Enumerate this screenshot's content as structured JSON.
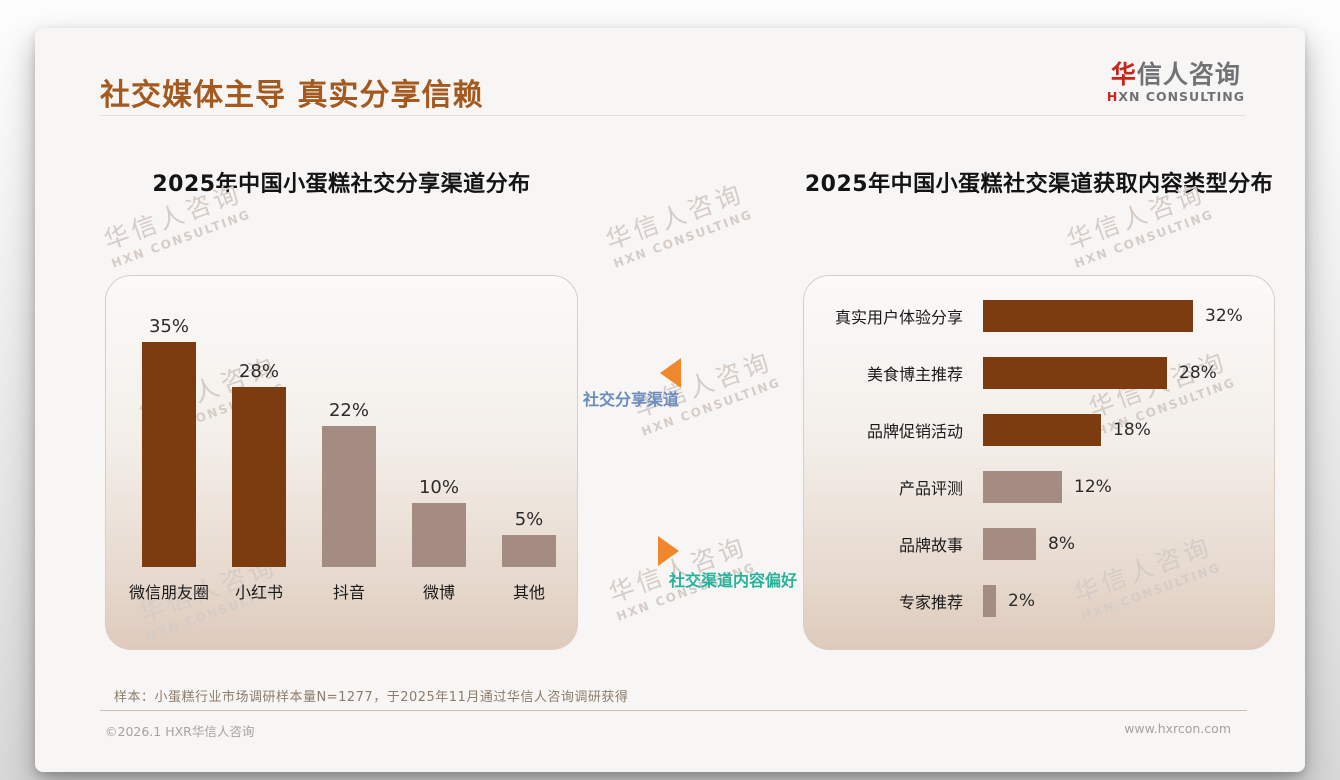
{
  "page": {
    "title": "社交媒体主导 真实分享信赖",
    "logo": {
      "cn_accent": "华",
      "cn_rest": "信人咨询",
      "en_accent": "H",
      "en_rest": "XN CONSULTING"
    },
    "watermark": {
      "cn": "华信人咨询",
      "en": "HXN CONSULTING"
    },
    "footnote": "样本：小蛋糕行业市场调研样本量N=1277，于2025年11月通过华信人咨询调研获得",
    "footer_left": "©2026.1 HXR华信人咨询",
    "footer_right": "www.hxrcon.com"
  },
  "colors": {
    "title": "#a4591f",
    "dark_bar": "#7d3c10",
    "light_bar": "#a58c82",
    "arrow": "#f0872d",
    "logo_red": "#c9251b",
    "logo_gray": "#717275"
  },
  "annotations": [
    {
      "label": "社交分享渠道",
      "color": "#6a8cbe",
      "arrow": "left"
    },
    {
      "label": "社交渠道内容偏好",
      "color": "#28b29b",
      "arrow": "right"
    }
  ],
  "chart_data": [
    {
      "type": "bar",
      "orientation": "vertical",
      "title": "2025年中国小蛋糕社交分享渠道分布",
      "categories": [
        "微信朋友圈",
        "小红书",
        "抖音",
        "微博",
        "其他"
      ],
      "values": [
        35,
        28,
        22,
        10,
        5
      ],
      "unit": "%",
      "ylim": [
        0,
        35
      ],
      "bar_colors": [
        "#7d3c10",
        "#7d3c10",
        "#a58c82",
        "#a58c82",
        "#a58c82"
      ],
      "grid": false,
      "legend": false
    },
    {
      "type": "bar",
      "orientation": "horizontal",
      "title": "2025年中国小蛋糕社交渠道获取内容类型分布",
      "categories": [
        "真实用户体验分享",
        "美食博主推荐",
        "品牌促销活动",
        "产品评测",
        "品牌故事",
        "专家推荐"
      ],
      "values": [
        32,
        28,
        18,
        12,
        8,
        2
      ],
      "unit": "%",
      "xlim": [
        0,
        32
      ],
      "bar_colors": [
        "#7d3c10",
        "#7d3c10",
        "#7d3c10",
        "#a58c82",
        "#a58c82",
        "#a58c82"
      ],
      "grid": false,
      "legend": false
    }
  ]
}
